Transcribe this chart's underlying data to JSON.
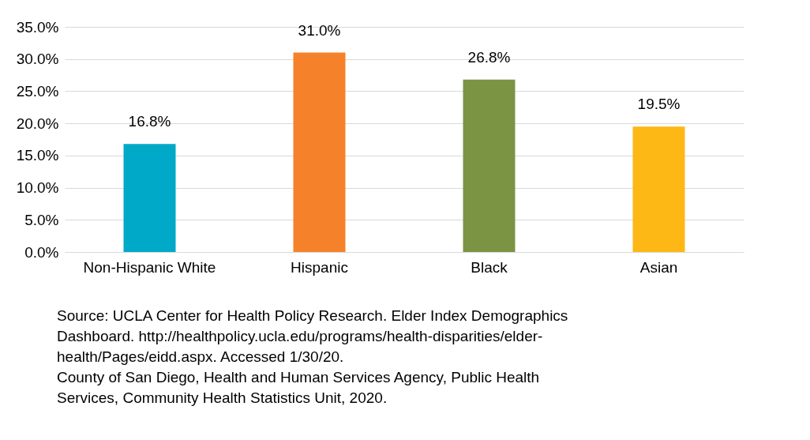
{
  "chart_data": {
    "type": "bar",
    "categories": [
      "Non-Hispanic White",
      "Hispanic",
      "Black",
      "Asian"
    ],
    "values": [
      16.8,
      31.0,
      26.8,
      19.5
    ],
    "colors": [
      "#00a9c8",
      "#f5822b",
      "#7a9444",
      "#fdb815"
    ],
    "value_labels": [
      "16.8%",
      "31.0%",
      "26.8%",
      "19.5%"
    ],
    "ylim": [
      0,
      35
    ],
    "yticks": [
      {
        "value": 0,
        "label": "0.0%"
      },
      {
        "value": 5,
        "label": "5.0%"
      },
      {
        "value": 10,
        "label": "10.0%"
      },
      {
        "value": 15,
        "label": "15.0%"
      },
      {
        "value": 20,
        "label": "20.0%"
      },
      {
        "value": 25,
        "label": "25.0%"
      },
      {
        "value": 30,
        "label": "30.0%"
      },
      {
        "value": 35,
        "label": "35.0%"
      }
    ],
    "grid": "y",
    "annotations": [
      "Source: UCLA Center for Health Policy Research. Elder Index Demographics Dashboard. http://healthpolicy.ucla.edu/programs/health-disparities/elder-health/Pages/eidd.aspx. Accessed 1/30/20.",
      "County of San Diego, Health and Human Services Agency, Public Health Services, Community Health Statistics Unit, 2020."
    ]
  }
}
